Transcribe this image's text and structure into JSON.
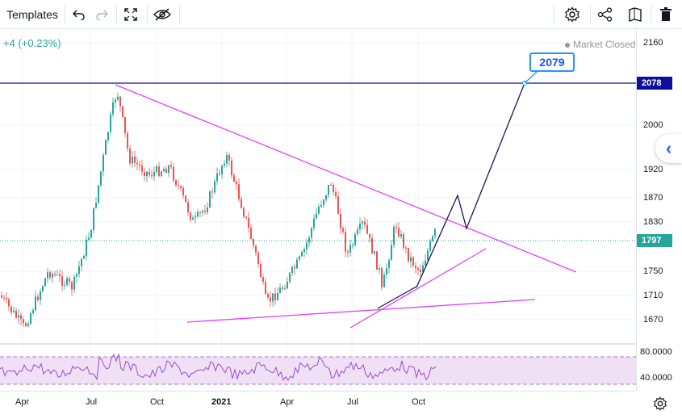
{
  "toolbar": {
    "templates_label": "Templates",
    "icons": [
      "undo-icon",
      "redo-icon",
      "fullscreen-icon",
      "hide-drawings-icon",
      "settings-icon",
      "share-icon",
      "snapshot-icon",
      "trash-icon"
    ]
  },
  "header": {
    "change": "+4 (+0.23%)",
    "market_status": "Market Closed"
  },
  "callout": {
    "value": "2079"
  },
  "price_axis": {
    "ticks": [
      "2160",
      "2000",
      "1920",
      "1870",
      "1830",
      "1750",
      "1710",
      "1670"
    ],
    "current_price": "1797",
    "target_price": "2078",
    "current_color": "#26a69a",
    "target_color": "#0d0f9c"
  },
  "rsi_axis": {
    "ticks": [
      "80.0000",
      "40.0000"
    ]
  },
  "time_axis": {
    "labels": [
      "Apr",
      "Jul",
      "Oct",
      "2021",
      "Apr",
      "Jul",
      "Oct"
    ]
  },
  "colors": {
    "accent": "#2962ff",
    "trendline": "#e040fb",
    "projection": "#131750",
    "rsi_line": "#9c4dcc",
    "rsi_band": "#efe0f5",
    "up": "#26a69a",
    "down": "#ef5350"
  }
}
